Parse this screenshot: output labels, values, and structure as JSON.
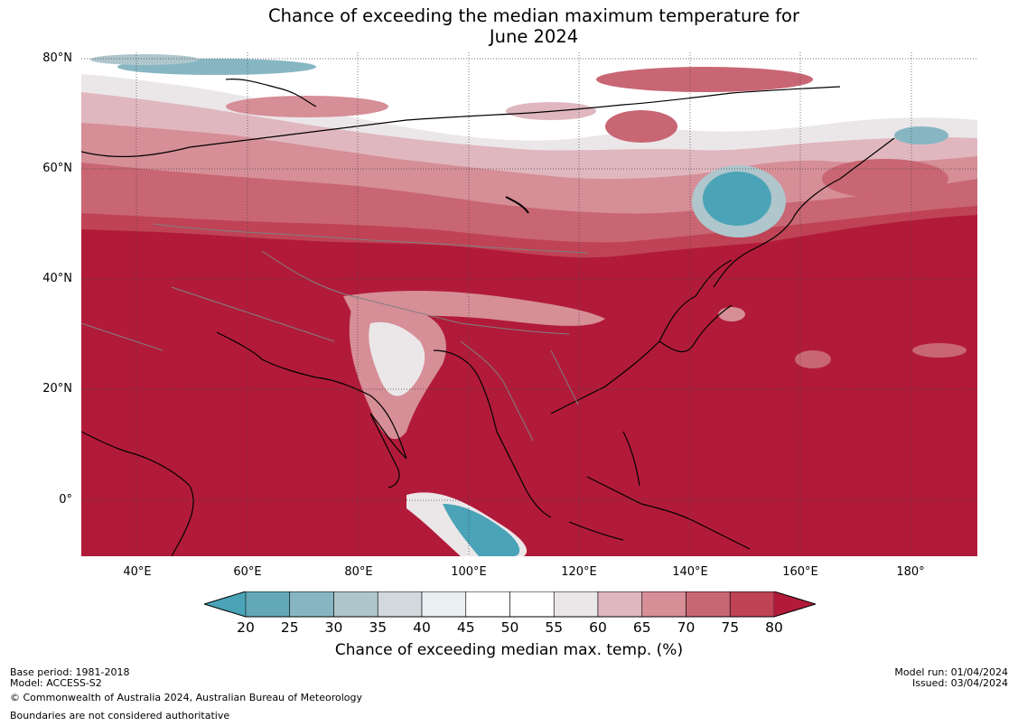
{
  "title": {
    "line1": "Chance of exceeding the median maximum temperature for",
    "line2": "June 2024"
  },
  "map": {
    "region": "Asia",
    "lat_labels": [
      "80°N",
      "60°N",
      "40°N",
      "20°N",
      "0°"
    ],
    "lon_labels": [
      "40°E",
      "60°E",
      "80°E",
      "100°E",
      "120°E",
      "140°E",
      "160°E",
      "180°"
    ],
    "lat_range": [
      -10,
      81
    ],
    "lon_range": [
      30,
      192
    ],
    "gridlines": true
  },
  "colorbar": {
    "ticks": [
      "20",
      "25",
      "30",
      "35",
      "40",
      "45",
      "50",
      "55",
      "60",
      "65",
      "70",
      "75",
      "80"
    ],
    "colors": [
      "#4aa3b6",
      "#63a8b9",
      "#87b6c3",
      "#aec6cc",
      "#d2d8dc",
      "#eaeff2",
      "#ffffff",
      "#ffffff",
      "#ebe7e9",
      "#e0b7bf",
      "#d68e97",
      "#c96673",
      "#bf4355",
      "#b11b39"
    ],
    "label": "Chance of exceeding median max. temp. (%)"
  },
  "footer": {
    "base_period": "Base period: 1981-2018",
    "model": "Model: ACCESS-S2",
    "copyright": "© Commonwealth of Australia 2024, Australian Bureau of Meteorology",
    "disclaimer": "Boundaries are not considered authoritative",
    "model_run": "Model run: 01/04/2024",
    "issued": "Issued: 03/04/2024"
  }
}
